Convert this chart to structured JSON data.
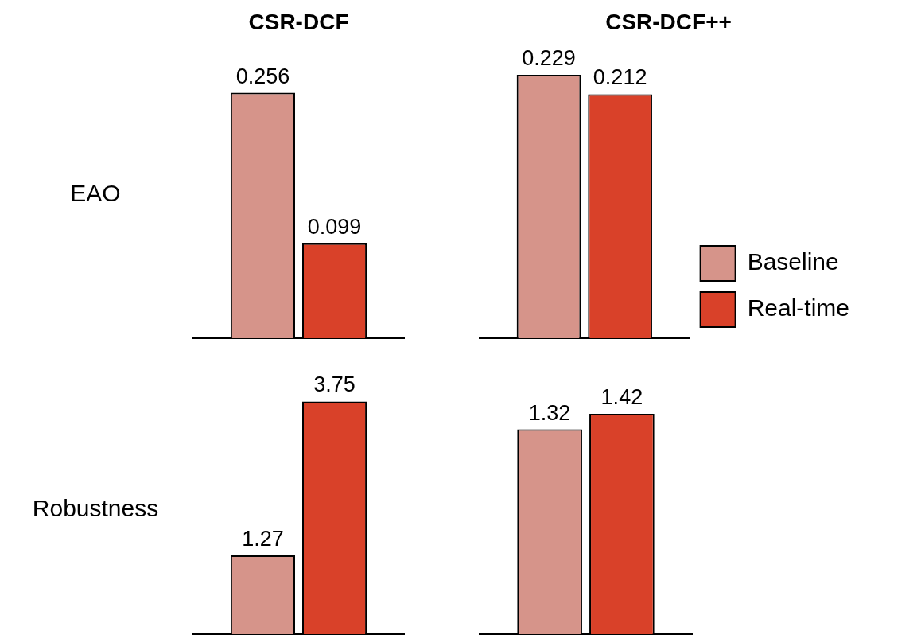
{
  "chart_data": [
    {
      "type": "bar",
      "title": "CSR-DCF",
      "ylabel": "EAO",
      "categories": [
        null
      ],
      "series": [
        {
          "color": "#d6948a",
          "values": [
            0.256
          ]
        },
        {
          "color": "#d94129",
          "values": [
            0.099
          ]
        }
      ],
      "data_labels": true,
      "tick_labels": false,
      "grid": false,
      "legend": false
    },
    {
      "type": "bar",
      "title": "CSR-DCF++",
      "categories": [
        null
      ],
      "series": [
        {
          "name": "Baseline",
          "color": "#d6948a",
          "values": [
            0.229
          ]
        },
        {
          "name": "Real-time",
          "color": "#d94129",
          "values": [
            0.212
          ]
        }
      ],
      "data_labels": true,
      "tick_labels": false,
      "grid": false,
      "legend": "bottom right"
    },
    {
      "type": "bar",
      "ylabel": "Robustness",
      "categories": [
        null
      ],
      "series": [
        {
          "color": "#d6948a",
          "values": [
            1.27
          ]
        },
        {
          "color": "#d94129",
          "values": [
            3.75
          ]
        }
      ],
      "data_labels": true,
      "tick_labels": false,
      "grid": false,
      "legend": false
    },
    {
      "type": "bar",
      "categories": [
        null
      ],
      "series": [
        {
          "color": "#d6948a",
          "values": [
            1.32
          ]
        },
        {
          "color": "#d94129",
          "values": [
            1.42
          ]
        }
      ],
      "data_labels": true,
      "tick_labels": false,
      "grid": false,
      "legend": false
    }
  ]
}
